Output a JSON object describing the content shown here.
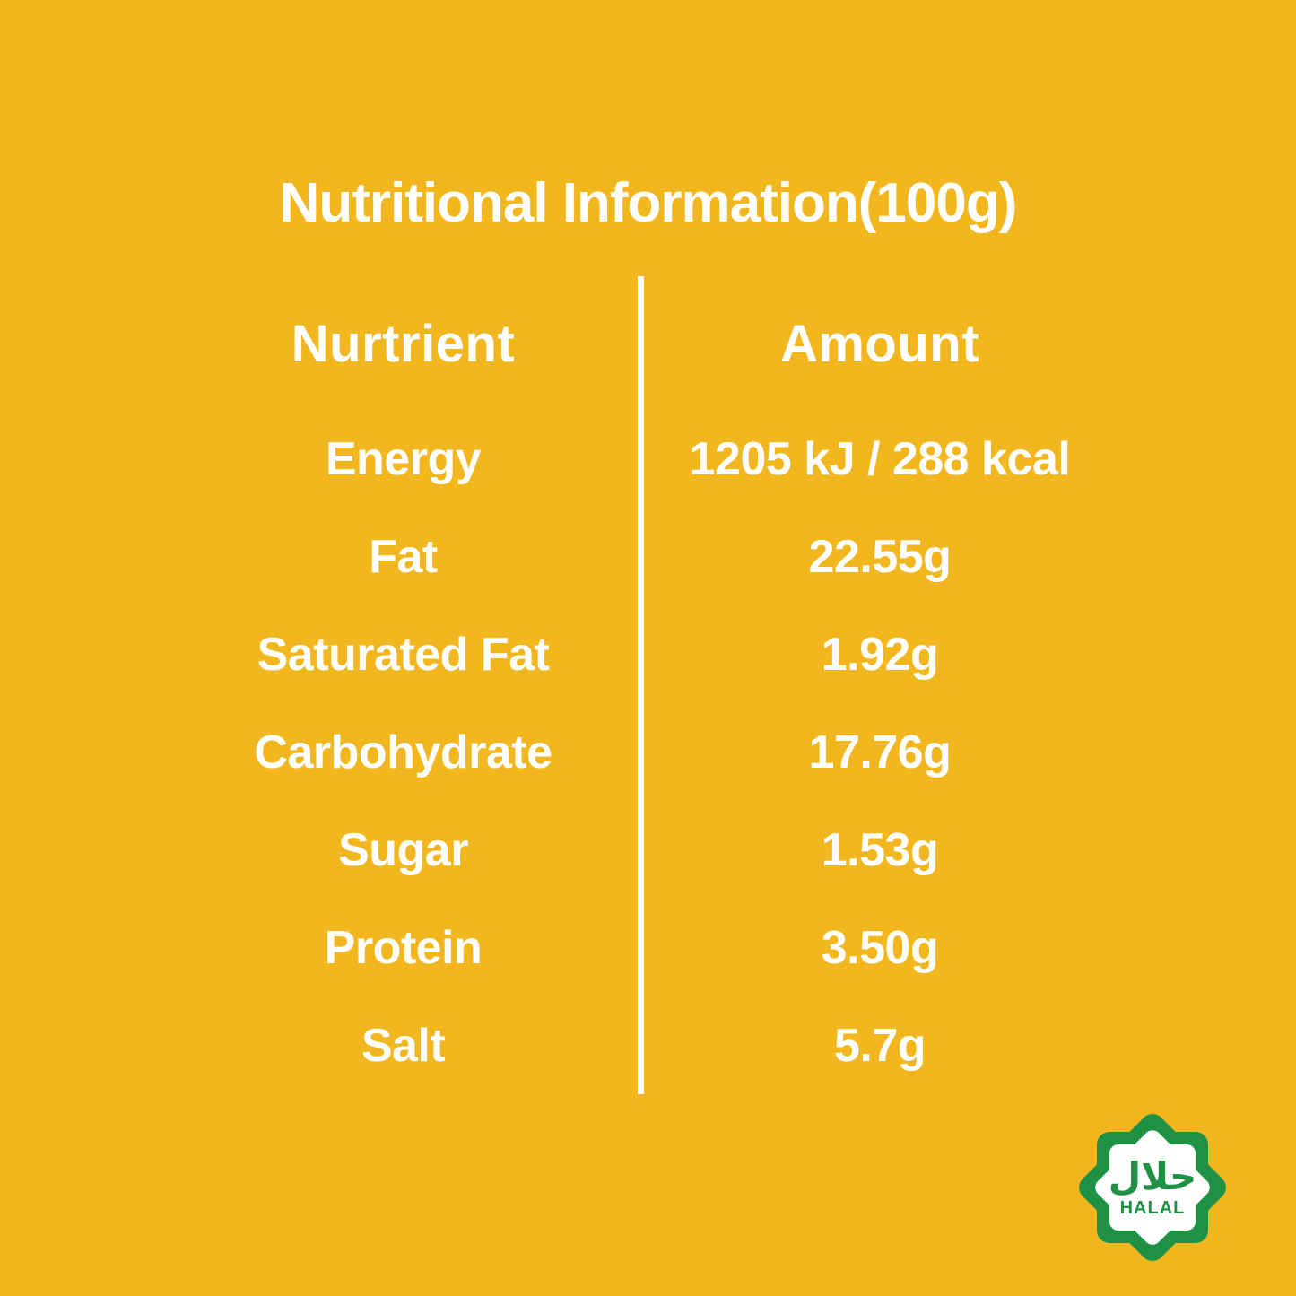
{
  "page": {
    "background_color": "#F2B71E",
    "text_color": "#FFFFFF",
    "divider_color": "#FFFFFF"
  },
  "title": "Nutritional Information(100g)",
  "table": {
    "headers": {
      "nutrient": "Nurtrient",
      "amount": "Amount"
    },
    "rows": [
      {
        "nutrient": "Energy",
        "amount": "1205 kJ / 288 kcal"
      },
      {
        "nutrient": "Fat",
        "amount": "22.55g"
      },
      {
        "nutrient": "Saturated Fat",
        "amount": "1.92g"
      },
      {
        "nutrient": "Carbohydrate",
        "amount": "17.76g"
      },
      {
        "nutrient": "Sugar",
        "amount": "1.53g"
      },
      {
        "nutrient": "Protein",
        "amount": "3.50g"
      },
      {
        "nutrient": "Salt",
        "amount": "5.7g"
      }
    ]
  },
  "badge": {
    "arabic_text": "حلال",
    "label": "HALAL",
    "green_color": "#1F9145"
  }
}
